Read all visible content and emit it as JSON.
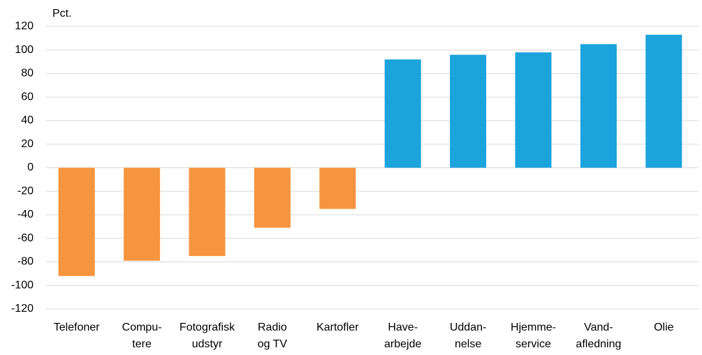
{
  "chart_data": {
    "type": "bar",
    "y_label": "Pct.",
    "categories": [
      "Telefoner",
      "Compu-\ntere",
      "Fotografisk\nudstyr",
      "Radio\nog TV",
      "Kartofler",
      "Have-\narbejde",
      "Uddan-\nnelse",
      "Hjemme-\nservice",
      "Vand-\nafledning",
      "Olie"
    ],
    "values": [
      -92,
      -79,
      -75,
      -51,
      -35,
      92,
      96,
      98,
      105,
      113
    ],
    "colors": [
      "#f7953e",
      "#f7953e",
      "#f7953e",
      "#f7953e",
      "#f7953e",
      "#1ba3dc",
      "#1ba3dc",
      "#1ba3dc",
      "#1ba3dc",
      "#1ba3dc"
    ],
    "ylim": [
      -120,
      120
    ],
    "yticks": [
      -120,
      -100,
      -80,
      -60,
      -40,
      -20,
      0,
      20,
      40,
      60,
      80,
      100,
      120
    ],
    "grid": true
  }
}
